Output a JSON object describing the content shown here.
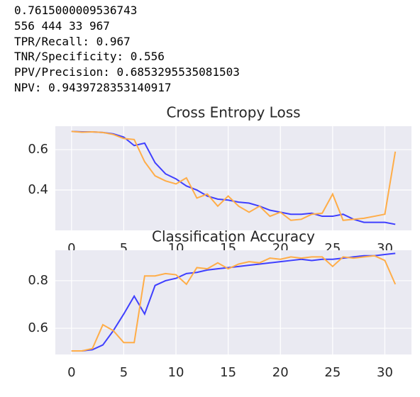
{
  "text_lines": [
    "0.7615000009536743",
    "556 444 33 967",
    "TPR/Recall: 0.967",
    "TNR/Specificity: 0.556",
    "PPV/Precision: 0.6853295535081503",
    "NPV: 0.9439728353140917"
  ],
  "chart_data": [
    {
      "type": "line",
      "title": "Cross Entropy Loss",
      "grid": true,
      "x": [
        0,
        1,
        2,
        3,
        4,
        5,
        6,
        7,
        8,
        9,
        10,
        11,
        12,
        13,
        14,
        15,
        16,
        17,
        18,
        19,
        20,
        21,
        22,
        23,
        24,
        25,
        26,
        27,
        28,
        29,
        30,
        31
      ],
      "xlim": [
        -1.55,
        32.55
      ],
      "xticks": [
        0,
        5,
        10,
        15,
        20,
        25,
        30
      ],
      "ylim": [
        0.2,
        0.716
      ],
      "yticks": [
        {
          "value": 0.4,
          "label": "0.4"
        },
        {
          "value": 0.6,
          "label": "0.6"
        }
      ],
      "series": [
        {
          "color": "#3f3fff",
          "values": [
            0.69,
            0.688,
            0.688,
            0.685,
            0.678,
            0.662,
            0.62,
            0.632,
            0.535,
            0.48,
            0.455,
            0.42,
            0.4,
            0.37,
            0.355,
            0.35,
            0.34,
            0.335,
            0.32,
            0.3,
            0.29,
            0.28,
            0.28,
            0.285,
            0.27,
            0.27,
            0.28,
            0.255,
            0.24,
            0.24,
            0.24,
            0.23
          ]
        },
        {
          "color": "#ffad48",
          "values": [
            0.69,
            0.686,
            0.688,
            0.685,
            0.675,
            0.655,
            0.65,
            0.54,
            0.47,
            0.445,
            0.43,
            0.46,
            0.36,
            0.38,
            0.32,
            0.37,
            0.32,
            0.29,
            0.32,
            0.27,
            0.29,
            0.25,
            0.255,
            0.28,
            0.285,
            0.38,
            0.25,
            0.255,
            0.26,
            0.27,
            0.28,
            0.59
          ]
        }
      ]
    },
    {
      "type": "line",
      "title": "Classification Accuracy",
      "grid": true,
      "x": [
        0,
        1,
        2,
        3,
        4,
        5,
        6,
        7,
        8,
        9,
        10,
        11,
        12,
        13,
        14,
        15,
        16,
        17,
        18,
        19,
        20,
        21,
        22,
        23,
        24,
        25,
        26,
        27,
        28,
        29,
        30,
        31
      ],
      "xlim": [
        -1.55,
        32.55
      ],
      "xticks": [
        0,
        5,
        10,
        15,
        20,
        25,
        30
      ],
      "ylim": [
        0.49,
        0.928
      ],
      "yticks": [
        {
          "value": 0.6,
          "label": "0.6"
        },
        {
          "value": 0.8,
          "label": "0.8"
        }
      ],
      "series": [
        {
          "color": "#3f3fff",
          "values": [
            0.505,
            0.505,
            0.51,
            0.53,
            0.59,
            0.66,
            0.735,
            0.66,
            0.78,
            0.8,
            0.81,
            0.83,
            0.835,
            0.845,
            0.85,
            0.855,
            0.86,
            0.865,
            0.87,
            0.875,
            0.88,
            0.885,
            0.89,
            0.885,
            0.89,
            0.89,
            0.895,
            0.9,
            0.905,
            0.905,
            0.91,
            0.915
          ]
        },
        {
          "color": "#ffad48",
          "values": [
            0.505,
            0.505,
            0.515,
            0.615,
            0.59,
            0.54,
            0.54,
            0.82,
            0.82,
            0.83,
            0.825,
            0.785,
            0.855,
            0.85,
            0.875,
            0.85,
            0.87,
            0.88,
            0.875,
            0.895,
            0.89,
            0.9,
            0.895,
            0.9,
            0.9,
            0.86,
            0.9,
            0.895,
            0.9,
            0.905,
            0.885,
            0.785
          ]
        }
      ]
    }
  ]
}
